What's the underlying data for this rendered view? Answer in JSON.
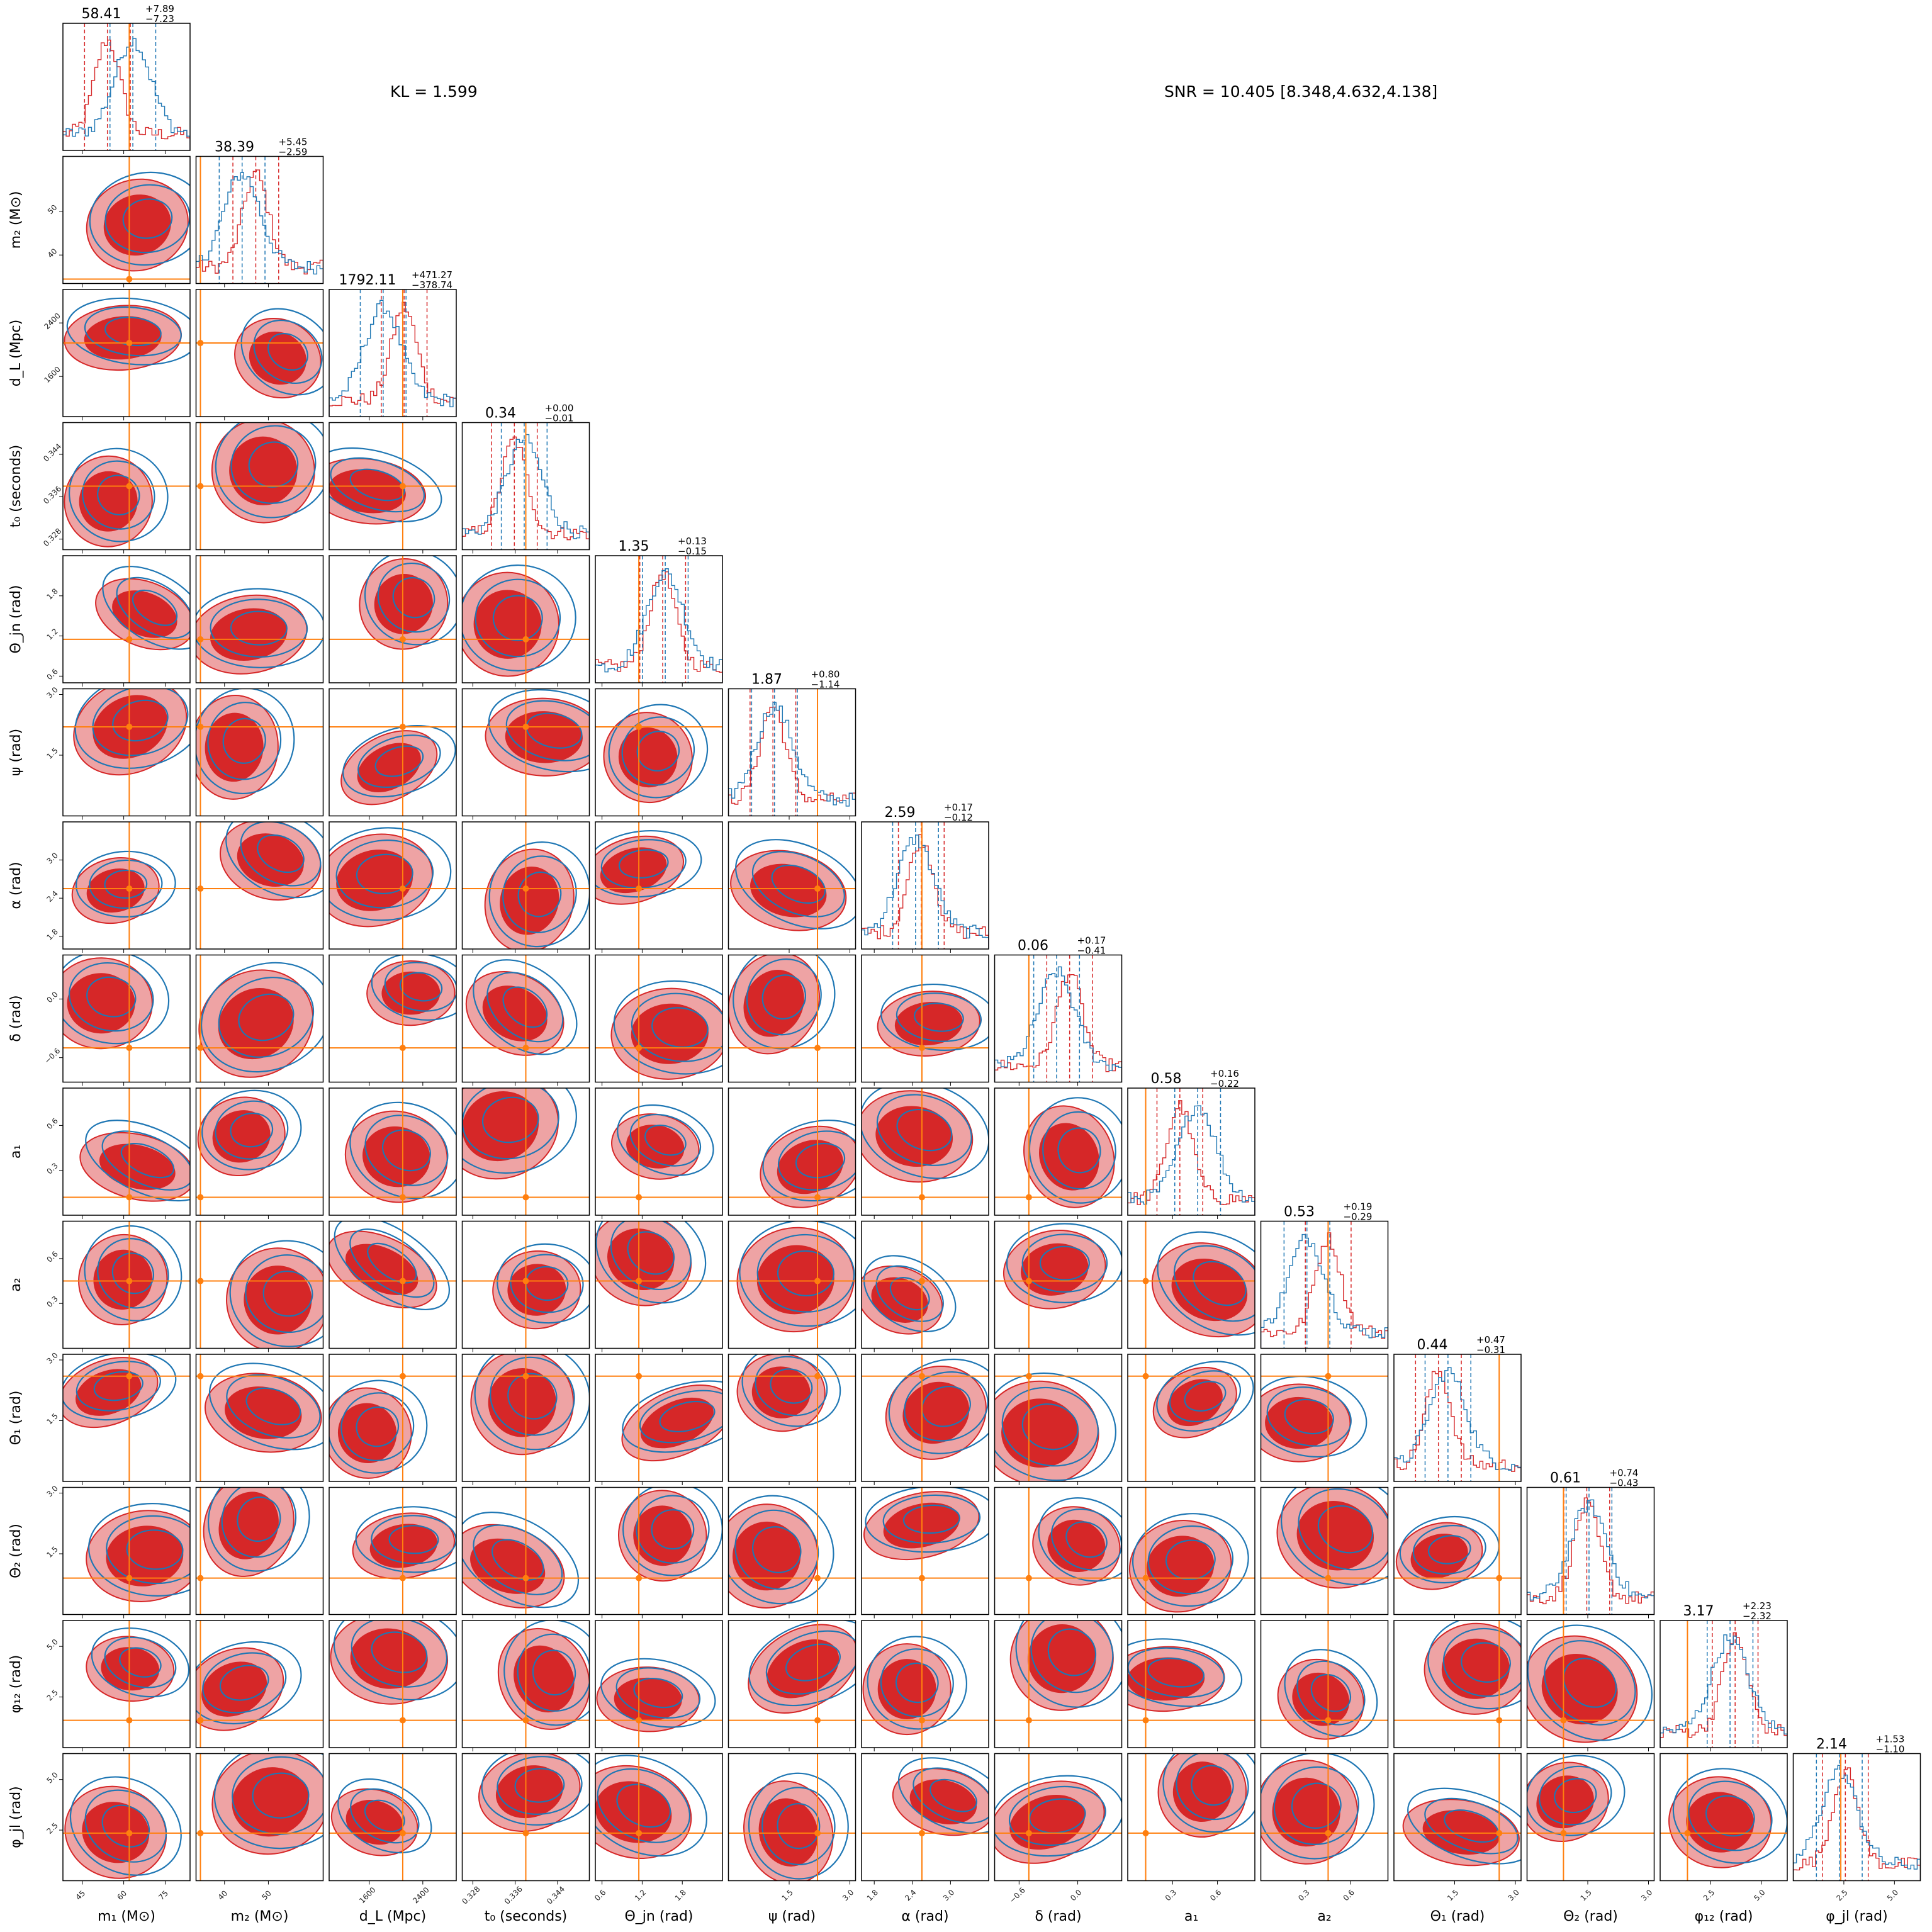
{
  "chart_data": {
    "type": "corner",
    "annotations": {
      "kl": "KL = 1.599",
      "snr": "SNR = 10.405 [8.348,4.632,4.138]"
    },
    "series": [
      {
        "name": "",
        "color": "#d62728"
      },
      {
        "name": "",
        "color": "#1f77b4"
      }
    ],
    "truth_color": "#ff7f0e",
    "params": [
      {
        "label": "m₁ (M⊙)",
        "range": [
          38,
          84
        ],
        "ticks": [
          "45",
          "60",
          "75"
        ],
        "ytick_vals": [],
        "xtick_vals": [
          45,
          60,
          75
        ],
        "truth": 62,
        "summary": {
          "median": "58.41",
          "plus": "+7.89",
          "minus": "−7.23"
        }
      },
      {
        "label": "m₂ (M⊙)",
        "range": [
          33.5,
          62.5
        ],
        "ticks": [
          "40",
          "50"
        ],
        "tick_vals": [
          40,
          50
        ],
        "truth": 34.5,
        "summary": {
          "median": "38.39",
          "plus": "+5.45",
          "minus": "−2.59"
        }
      },
      {
        "label": "d_L (Mpc)",
        "range": [
          1000,
          2900
        ],
        "ticks": [
          "1600",
          "2400"
        ],
        "tick_vals": [
          1600,
          2400
        ],
        "truth": 2100,
        "summary": {
          "median": "1792.11",
          "plus": "+471.27",
          "minus": "−378.74"
        }
      },
      {
        "label": "t₀ (seconds)",
        "range": [
          0.326,
          0.35
        ],
        "ticks": [
          "0.328",
          "0.336",
          "0.344"
        ],
        "tick_vals": [
          0.328,
          0.336,
          0.344
        ],
        "truth": 0.338,
        "summary": {
          "median": "0.34",
          "plus": "+0.00",
          "minus": "−0.01"
        }
      },
      {
        "label": "Θ_jn (rad)",
        "range": [
          0.5,
          2.4
        ],
        "ticks": [
          "0.6",
          "1.2",
          "1.8"
        ],
        "tick_vals": [
          0.6,
          1.2,
          1.8
        ],
        "truth": 1.15,
        "summary": {
          "median": "1.35",
          "plus": "+0.13",
          "minus": "−0.15"
        }
      },
      {
        "label": "ψ (rad)",
        "range": [
          0.0,
          3.14
        ],
        "ticks": [
          "1.5",
          "3.0"
        ],
        "tick_vals": [
          1.5,
          3.0
        ],
        "truth": 2.2,
        "summary": {
          "median": "1.87",
          "plus": "+0.80",
          "minus": "−1.14"
        }
      },
      {
        "label": "α (rad)",
        "range": [
          1.6,
          3.6
        ],
        "ticks": [
          "1.8",
          "2.4",
          "3.0"
        ],
        "tick_vals": [
          1.8,
          2.4,
          3.0
        ],
        "truth": 2.55,
        "summary": {
          "median": "2.59",
          "plus": "+0.17",
          "minus": "−0.12"
        }
      },
      {
        "label": "δ (rad)",
        "range": [
          -0.85,
          0.45
        ],
        "ticks": [
          "−0.6",
          "0.0"
        ],
        "tick_vals": [
          -0.6,
          0.0
        ],
        "truth": -0.5,
        "summary": {
          "median": "0.06",
          "plus": "+0.17",
          "minus": "−0.41"
        }
      },
      {
        "label": "a₁",
        "range": [
          0.0,
          0.85
        ],
        "ticks": [
          "0.3",
          "0.6"
        ],
        "tick_vals": [
          0.3,
          0.6
        ],
        "truth": 0.12,
        "summary": {
          "median": "0.58",
          "plus": "+0.16",
          "minus": "−0.22"
        }
      },
      {
        "label": "a₂",
        "range": [
          0.0,
          0.85
        ],
        "ticks": [
          "0.3",
          "0.6"
        ],
        "tick_vals": [
          0.3,
          0.6
        ],
        "truth": 0.45,
        "summary": {
          "median": "0.53",
          "plus": "+0.19",
          "minus": "−0.29"
        }
      },
      {
        "label": "Θ₁ (rad)",
        "range": [
          0.0,
          3.14
        ],
        "ticks": [
          "1.5",
          "3.0"
        ],
        "tick_vals": [
          1.5,
          3.0
        ],
        "truth": 2.6,
        "summary": {
          "median": "0.44",
          "plus": "+0.47",
          "minus": "−0.31"
        }
      },
      {
        "label": "Θ₂ (rad)",
        "range": [
          0.0,
          3.14
        ],
        "ticks": [
          "1.5",
          "3.0"
        ],
        "tick_vals": [
          1.5,
          3.0
        ],
        "truth": 0.9,
        "summary": {
          "median": "0.61",
          "plus": "+0.74",
          "minus": "−0.43"
        }
      },
      {
        "label": "φ₁₂ (rad)",
        "range": [
          0.0,
          6.28
        ],
        "ticks": [
          "2.5",
          "5.0"
        ],
        "tick_vals": [
          2.5,
          5.0
        ],
        "truth": 1.35,
        "summary": {
          "median": "3.17",
          "plus": "+2.23",
          "minus": "−2.32"
        }
      },
      {
        "label": "φ_jl (rad)",
        "range": [
          0.0,
          6.28
        ],
        "ticks": [
          "2.5",
          "5.0"
        ],
        "tick_vals": [
          2.5,
          5.0
        ],
        "truth": 2.35,
        "summary": {
          "median": "2.14",
          "plus": "+1.53",
          "minus": "−1.10"
        }
      }
    ]
  }
}
